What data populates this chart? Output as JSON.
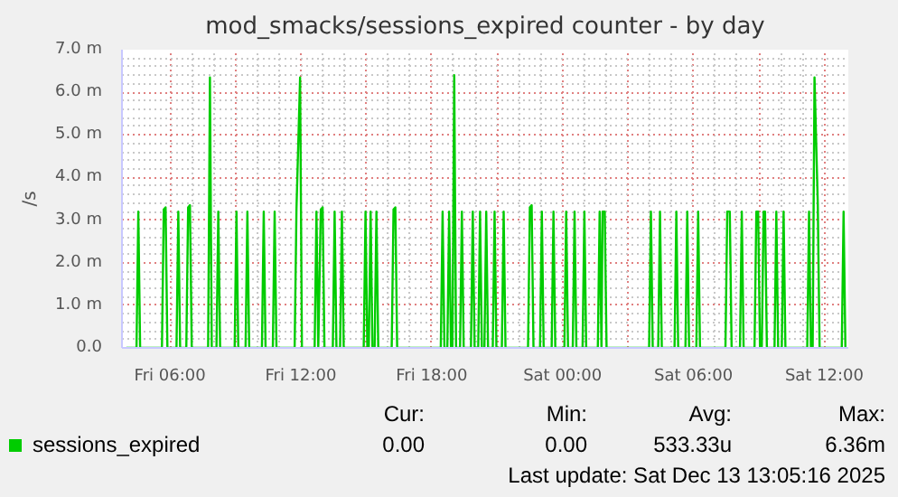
{
  "chart_data": {
    "type": "line",
    "title": "mod_smacks/sessions_expired counter - by day",
    "ylabel": "/s",
    "xlim": [
      "2025-12-12T03:48",
      "2025-12-13T13:06"
    ],
    "xticks": [
      {
        "value": "2025-12-12T06:00",
        "label": "Fri 06:00"
      },
      {
        "value": "2025-12-12T09:00",
        "label": null
      },
      {
        "value": "2025-12-12T12:00",
        "label": "Fri 12:00"
      },
      {
        "value": "2025-12-12T15:00",
        "label": null
      },
      {
        "value": "2025-12-12T18:00",
        "label": "Fri 18:00"
      },
      {
        "value": "2025-12-12T21:00",
        "label": null
      },
      {
        "value": "2025-12-13T00:00",
        "label": "Sat 00:00"
      },
      {
        "value": "2025-12-13T03:00",
        "label": null
      },
      {
        "value": "2025-12-13T06:00",
        "label": "Sat 06:00"
      },
      {
        "value": "2025-12-13T09:00",
        "label": null
      },
      {
        "value": "2025-12-13T12:00",
        "label": "Sat 12:00"
      }
    ],
    "ylim": [
      0,
      7
    ],
    "yticks": [
      {
        "value": 0,
        "label": "0.0"
      },
      {
        "value": 1,
        "label": "1.0 m"
      },
      {
        "value": 2,
        "label": "2.0 m"
      },
      {
        "value": 3,
        "label": "3.0 m"
      },
      {
        "value": 4,
        "label": "4.0 m"
      },
      {
        "value": 5,
        "label": "5.0 m"
      },
      {
        "value": 6,
        "label": "6.0 m"
      },
      {
        "value": 7,
        "label": "7.0 m"
      }
    ],
    "grid": true,
    "legend": "bottom",
    "series": [
      {
        "name": "sessions_expired",
        "color": "#00cc00",
        "x": [
          "2025-12-12T04:00",
          "2025-12-12T04:28",
          "2025-12-12T04:33",
          "2025-12-12T04:38",
          "2025-12-12T05:38",
          "2025-12-12T05:43",
          "2025-12-12T05:48",
          "2025-12-12T05:53",
          "2025-12-12T06:18",
          "2025-12-12T06:23",
          "2025-12-12T06:28",
          "2025-12-12T06:45",
          "2025-12-12T06:50",
          "2025-12-12T06:55",
          "2025-12-12T07:00",
          "2025-12-12T07:45",
          "2025-12-12T07:50",
          "2025-12-12T07:55",
          "2025-12-12T08:08",
          "2025-12-12T08:13",
          "2025-12-12T08:18",
          "2025-12-12T08:58",
          "2025-12-12T09:03",
          "2025-12-12T09:08",
          "2025-12-12T09:28",
          "2025-12-12T09:33",
          "2025-12-12T09:38",
          "2025-12-12T10:13",
          "2025-12-12T10:18",
          "2025-12-12T10:23",
          "2025-12-12T10:43",
          "2025-12-12T10:48",
          "2025-12-12T10:53",
          "2025-12-12T11:43",
          "2025-12-12T11:48",
          "2025-12-12T11:58",
          "2025-12-12T12:03",
          "2025-12-12T12:38",
          "2025-12-12T12:43",
          "2025-12-12T12:48",
          "2025-12-12T12:55",
          "2025-12-12T13:00",
          "2025-12-12T13:05",
          "2025-12-12T13:28",
          "2025-12-12T13:33",
          "2025-12-12T13:38",
          "2025-12-12T13:48",
          "2025-12-12T13:53",
          "2025-12-12T13:58",
          "2025-12-12T14:53",
          "2025-12-12T14:58",
          "2025-12-12T15:03",
          "2025-12-12T15:07",
          "2025-12-12T15:12",
          "2025-12-12T15:17",
          "2025-12-12T15:23",
          "2025-12-12T15:28",
          "2025-12-12T15:33",
          "2025-12-12T16:10",
          "2025-12-12T16:15",
          "2025-12-12T16:20",
          "2025-12-12T16:25",
          "2025-12-12T18:25",
          "2025-12-12T18:30",
          "2025-12-12T18:35",
          "2025-12-12T18:43",
          "2025-12-12T18:48",
          "2025-12-12T18:53",
          "2025-12-12T18:57",
          "2025-12-12T19:02",
          "2025-12-12T19:07",
          "2025-12-12T19:18",
          "2025-12-12T19:23",
          "2025-12-12T19:28",
          "2025-12-12T19:48",
          "2025-12-12T19:53",
          "2025-12-12T19:58",
          "2025-12-12T20:08",
          "2025-12-12T20:13",
          "2025-12-12T20:18",
          "2025-12-12T20:25",
          "2025-12-12T20:30",
          "2025-12-12T20:35",
          "2025-12-12T20:48",
          "2025-12-12T20:53",
          "2025-12-12T20:58",
          "2025-12-12T21:13",
          "2025-12-12T21:18",
          "2025-12-12T21:23",
          "2025-12-12T22:25",
          "2025-12-12T22:30",
          "2025-12-12T22:35",
          "2025-12-12T22:40",
          "2025-12-12T22:58",
          "2025-12-12T23:03",
          "2025-12-12T23:08",
          "2025-12-12T23:30",
          "2025-12-12T23:35",
          "2025-12-12T23:40",
          "2025-12-13T00:05",
          "2025-12-13T00:10",
          "2025-12-13T00:15",
          "2025-12-13T00:28",
          "2025-12-13T00:33",
          "2025-12-13T00:38",
          "2025-12-13T00:55",
          "2025-12-13T01:00",
          "2025-12-13T01:05",
          "2025-12-13T01:37",
          "2025-12-13T01:42",
          "2025-12-13T01:47",
          "2025-12-13T01:50",
          "2025-12-13T01:56",
          "2025-12-13T02:01",
          "2025-12-13T03:58",
          "2025-12-13T04:03",
          "2025-12-13T04:08",
          "2025-12-13T04:23",
          "2025-12-13T04:28",
          "2025-12-13T04:33",
          "2025-12-13T05:08",
          "2025-12-13T05:13",
          "2025-12-13T05:18",
          "2025-12-13T05:38",
          "2025-12-13T05:43",
          "2025-12-13T05:48",
          "2025-12-13T06:08",
          "2025-12-13T06:13",
          "2025-12-13T06:18",
          "2025-12-13T07:28",
          "2025-12-13T07:33",
          "2025-12-13T07:40",
          "2025-12-13T07:45",
          "2025-12-13T08:08",
          "2025-12-13T08:13",
          "2025-12-13T08:18",
          "2025-12-13T08:48",
          "2025-12-13T08:53",
          "2025-12-13T08:58",
          "2025-12-13T09:03",
          "2025-12-13T09:08",
          "2025-12-13T09:13",
          "2025-12-13T09:17",
          "2025-12-13T09:22",
          "2025-12-13T09:43",
          "2025-12-13T09:48",
          "2025-12-13T09:53",
          "2025-12-13T10:03",
          "2025-12-13T10:08",
          "2025-12-13T10:13",
          "2025-12-13T11:13",
          "2025-12-13T11:18",
          "2025-12-13T11:23",
          "2025-12-13T11:28",
          "2025-12-13T11:33",
          "2025-12-13T11:42",
          "2025-12-13T11:47",
          "2025-12-13T12:48",
          "2025-12-13T12:53",
          "2025-12-13T12:58",
          "2025-12-13T13:00"
        ],
        "values": [
          0,
          0,
          3.2,
          0,
          0,
          3.25,
          3.3,
          0,
          0,
          3.2,
          0,
          0,
          3.3,
          3.35,
          0,
          0,
          6.35,
          0,
          0,
          3.2,
          0,
          0,
          3.2,
          0,
          0,
          3.2,
          0,
          0,
          3.2,
          0,
          0,
          3.2,
          0,
          0,
          3.25,
          6.35,
          0,
          0,
          3.2,
          0,
          3.25,
          3.3,
          0,
          0,
          3.2,
          0,
          0,
          3.2,
          0,
          0,
          3.2,
          0,
          0,
          3.2,
          0,
          0,
          3.2,
          0,
          0,
          3.25,
          3.3,
          0,
          0,
          3.2,
          0,
          0,
          3.2,
          0,
          0,
          6.4,
          0,
          0,
          3.2,
          0,
          0,
          3.2,
          0,
          0,
          3.2,
          0,
          0,
          3.2,
          0,
          0,
          3.2,
          0,
          0,
          3.2,
          0,
          0,
          3.3,
          3.35,
          0,
          0,
          3.2,
          0,
          0,
          3.2,
          0,
          0,
          3.2,
          0,
          0,
          3.2,
          0,
          0,
          3.2,
          0,
          0,
          3.2,
          0,
          3.2,
          3.2,
          0,
          0,
          3.2,
          0,
          0,
          3.2,
          0,
          0,
          3.2,
          0,
          0,
          3.2,
          0,
          0,
          3.2,
          0,
          0,
          3.2,
          3.2,
          0,
          0,
          3.2,
          0,
          0,
          3.2,
          3.2,
          0,
          0,
          3.2,
          3.2,
          0,
          0,
          3.2,
          0,
          0,
          3.2,
          0,
          0,
          3.2,
          0,
          0,
          6.35,
          3.4,
          0,
          0,
          3.2,
          0,
          0
        ]
      }
    ],
    "annotations": [
      "Cur:",
      "Min:",
      "Avg:",
      "Max:",
      "0.00",
      "0.00",
      "533.33u",
      "6.36m",
      "Last update: Sat Dec 13 13:05:16 2025"
    ]
  }
}
